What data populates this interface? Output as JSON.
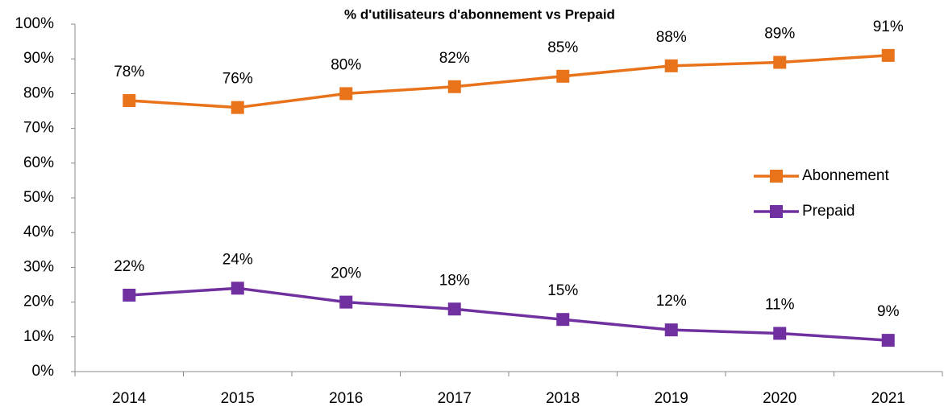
{
  "chart_data": {
    "type": "line",
    "title": "% d'utilisateurs d'abonnement vs Prepaid",
    "categories": [
      "2014",
      "2015",
      "2016",
      "2017",
      "2018",
      "2019",
      "2020",
      "2021"
    ],
    "series": [
      {
        "name": "Abonnement",
        "color": "#e8731a",
        "values": [
          78,
          76,
          80,
          82,
          85,
          88,
          89,
          91
        ],
        "value_labels": [
          "78%",
          "76%",
          "80%",
          "82%",
          "85%",
          "88%",
          "89%",
          "91%"
        ]
      },
      {
        "name": "Prepaid",
        "color": "#7030a0",
        "values": [
          22,
          24,
          20,
          18,
          15,
          12,
          11,
          9
        ],
        "value_labels": [
          "22%",
          "24%",
          "20%",
          "18%",
          "15%",
          "12%",
          "11%",
          "9%"
        ]
      }
    ],
    "ylim": [
      0,
      100
    ],
    "yticks": [
      {
        "value": 0,
        "label": "0%"
      },
      {
        "value": 10,
        "label": "10%"
      },
      {
        "value": 20,
        "label": "20%"
      },
      {
        "value": 30,
        "label": "30%"
      },
      {
        "value": 40,
        "label": "40%"
      },
      {
        "value": 50,
        "label": "50%"
      },
      {
        "value": 60,
        "label": "60%"
      },
      {
        "value": 70,
        "label": "70%"
      },
      {
        "value": 80,
        "label": "80%"
      },
      {
        "value": 90,
        "label": "90%"
      },
      {
        "value": 100,
        "label": "100%"
      }
    ],
    "grid": false,
    "legend": "right"
  }
}
